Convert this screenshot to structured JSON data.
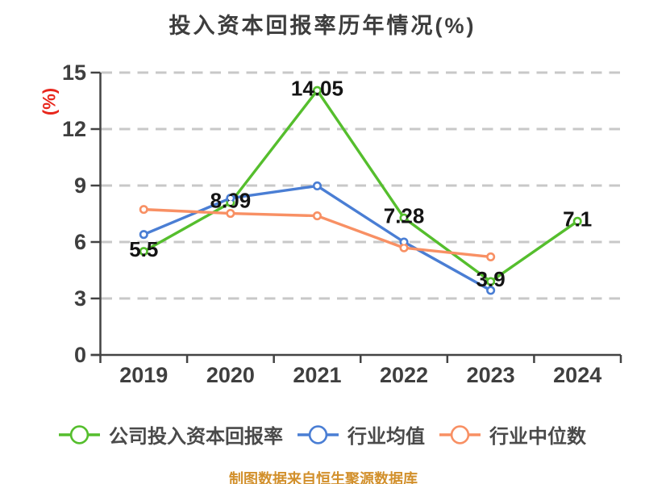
{
  "title": "投入资本回报率历年情况(%)",
  "caption": "制图数据来自恒生聚源数据库",
  "colors": {
    "background": "#ffffff",
    "title_text": "#3d3d3d",
    "axis_line": "#434343",
    "axis_tick_text": "#3f3f3f",
    "gridline": "#c8c8c8",
    "value_label_text": "#141414",
    "y_axis_label_red": "#e8261c",
    "legend_text": "#4a4a4a",
    "caption_text": "#d2902c",
    "series_company_green": "#55be2d",
    "series_mean_blue": "#4a7ed4",
    "series_median_orange": "#f89064"
  },
  "chart_data": {
    "type": "line",
    "title": "投入资本回报率历年情况(%)",
    "xlabel": "",
    "ylabel": "(%)",
    "categories": [
      "2019",
      "2020",
      "2021",
      "2022",
      "2023",
      "2024"
    ],
    "y_ticks": [
      0,
      3,
      6,
      9,
      12,
      15
    ],
    "ylim": [
      0,
      15
    ],
    "grid": "horizontal-dashed",
    "legend_position": "bottom",
    "series": [
      {
        "name": "公司投入资本回报率",
        "color": "#55be2d",
        "values": [
          5.5,
          8.09,
          14.05,
          7.28,
          3.9,
          7.1
        ],
        "point_labels": [
          "5.5",
          "8.09",
          "14.05",
          "7.28",
          "3.9",
          "7.1"
        ]
      },
      {
        "name": "行业均值",
        "color": "#4a7ed4",
        "values": [
          6.4,
          8.33,
          8.98,
          6.0,
          3.43,
          null
        ],
        "point_labels": []
      },
      {
        "name": "行业中位数",
        "color": "#f89064",
        "values": [
          7.73,
          7.52,
          7.39,
          5.69,
          5.21,
          null
        ],
        "point_labels": []
      }
    ],
    "caption": "制图数据来自恒生聚源数据库"
  }
}
